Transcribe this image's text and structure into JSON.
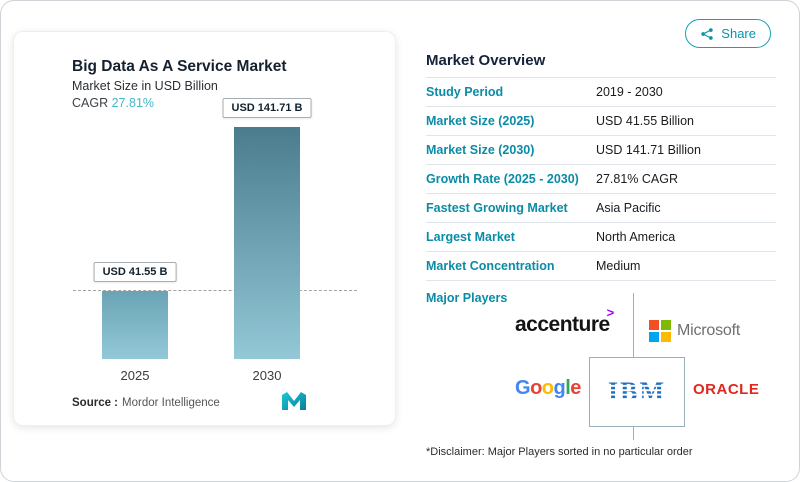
{
  "share": {
    "label": "Share"
  },
  "chart_card": {
    "title": "Big Data As A Service Market",
    "subtitle": "Market Size in USD Billion",
    "cagr_label": "CAGR",
    "cagr_value": "27.81%",
    "source_label": "Source :",
    "source_name": "Mordor Intelligence"
  },
  "chart_data": {
    "type": "bar",
    "title": "Big Data As A Service Market",
    "ylabel": "Market Size in USD Billion",
    "categories": [
      "2025",
      "2030"
    ],
    "values": [
      41.55,
      141.71
    ],
    "bar_labels": [
      "USD 41.55 B",
      "USD 141.71 B"
    ],
    "cagr": "27.81%",
    "ylim": [
      0,
      141.71
    ],
    "grid": "off",
    "legend": "none",
    "annotations": [
      "dashed horizontal reference line at 2025 bar top"
    ]
  },
  "overview": {
    "title": "Market Overview",
    "rows": [
      {
        "label": "Study Period",
        "value": "2019 - 2030"
      },
      {
        "label": "Market Size (2025)",
        "value": "USD 41.55 Billion"
      },
      {
        "label": "Market Size (2030)",
        "value": "USD 141.71 Billion"
      },
      {
        "label": "Growth Rate (2025 - 2030)",
        "value": "27.81% CAGR"
      },
      {
        "label": "Fastest Growing Market",
        "value": "Asia Pacific"
      },
      {
        "label": "Largest Market",
        "value": "North America"
      },
      {
        "label": "Market Concentration",
        "value": "Medium"
      }
    ],
    "major_players_label": "Major Players",
    "players": [
      {
        "name": "accenture",
        "symbol": ">"
      },
      {
        "name": "Microsoft"
      },
      {
        "name": "Google"
      },
      {
        "name": "IBM"
      },
      {
        "name": "ORACLE"
      }
    ],
    "disclaimer": "*Disclaimer: Major Players sorted in no particular order"
  },
  "colors": {
    "accent_teal": "#0a8ca6",
    "cagr_teal": "#41b9cb",
    "bar_top": "#4a7c8e",
    "bar_bottom": "#93c8d7",
    "oracle_red": "#e0281e",
    "accenture_purple": "#a100ff",
    "ibm_blue": "#1f70c1"
  }
}
